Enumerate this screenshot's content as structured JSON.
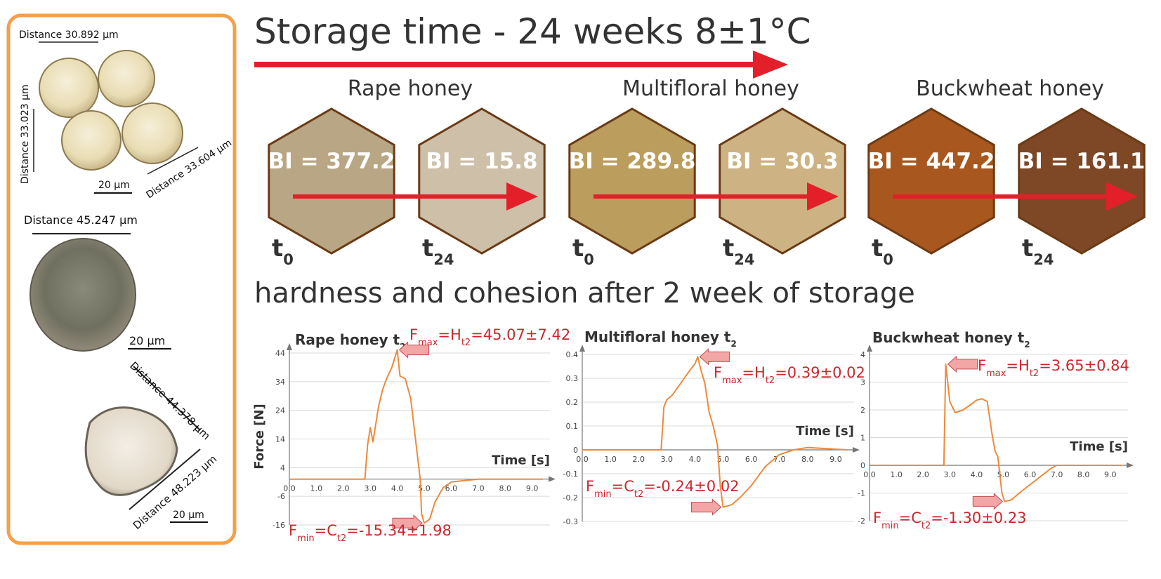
{
  "colors": {
    "frame": "#F2A04A",
    "arrow_red": "#E3202A",
    "curve": "#EE8A3A",
    "annot_red": "#C8282E",
    "callout_fill": "#F2A6A6",
    "grid": "#D9D9D9",
    "text_dark": "#333333"
  },
  "header": {
    "title": "Storage time - 24 weeks 8±1°C"
  },
  "pollen": {
    "rape": {
      "d1": "Distance 30.892 µm",
      "d2": "Distance 33.023 µm",
      "d3": "Distance 33.604 µm",
      "scale": "20 µm"
    },
    "multifloral": {
      "d1": "Distance 45.247 µm",
      "scale": "20 µm"
    },
    "buckwheat": {
      "d1": "Distance 44.378 µm",
      "d2": "Distance 48.223 µm",
      "scale": "20 µm"
    }
  },
  "honeys": [
    {
      "label": "Rape honey",
      "t0_bi": "BI = 377.2",
      "t24_bi": "BI = 15.8",
      "t0_color": "#B9A684",
      "t24_color": "#CDBFA8"
    },
    {
      "label": "Multifloral honey",
      "t0_color": "#BB9D5E",
      "t24_color": "#CDB383",
      "t0_bi": "BI = 289.8",
      "t24_bi": "BI = 30.3"
    },
    {
      "label": "Buckwheat honey",
      "t0_color": "#A8581E",
      "t24_color": "#7E4826",
      "t0_bi": "BI = 447.2",
      "t24_bi": "BI = 161.1"
    }
  ],
  "time_labels": {
    "t0": "t",
    "t0_sub": "0",
    "t24": "t",
    "t24_sub": "24"
  },
  "section2": {
    "title": "hardness and cohesion after 2 week of storage"
  },
  "chart_data": [
    {
      "type": "line",
      "title": "Rape honey t",
      "title_sub": "2",
      "xlabel": "Time [s]",
      "ylabel": "Force [N]",
      "xlim": [
        0,
        9.4
      ],
      "ylim": [
        -16,
        44
      ],
      "y_ticks": [
        "44",
        "34",
        "24",
        "14",
        "4",
        "-6",
        "-16"
      ],
      "x_ticks": [
        "0.0",
        "1.0",
        "2.0",
        "3.0",
        "4.0",
        "5.0",
        "6.0",
        "7.0",
        "8.0",
        "9.0"
      ],
      "x_tick_values": [
        0,
        1,
        2,
        3,
        4,
        5,
        6,
        7,
        8,
        9
      ],
      "y_tick_values": [
        44,
        34,
        24,
        14,
        4,
        -6,
        -16
      ],
      "zero_y": 0,
      "x": [
        0,
        1,
        2,
        2.8,
        2.9,
        3.0,
        3.1,
        3.2,
        3.3,
        3.45,
        3.6,
        3.8,
        4.0,
        4.1,
        4.3,
        4.5,
        4.7,
        4.85,
        4.9,
        5.0,
        5.2,
        5.4,
        5.7,
        6.0,
        7,
        8,
        9.4
      ],
      "y": [
        0,
        0,
        0,
        0,
        12,
        18,
        13,
        19,
        25,
        31,
        35,
        39,
        45.07,
        36,
        35,
        28,
        12,
        0,
        -12,
        -15.34,
        -14,
        -8,
        -3,
        -1,
        0,
        0,
        0
      ],
      "annotations": {
        "max": {
          "prefix": "F",
          "sub1": "max",
          "mid": "=H",
          "sub2": "t2",
          "value": "=45.07±7.42"
        },
        "min": {
          "prefix": "F",
          "sub1": "min",
          "mid": "=C",
          "sub2": "t2",
          "value": "=-15.34±1.98"
        }
      }
    },
    {
      "type": "line",
      "title": "Multifloral honey t",
      "title_sub": "2",
      "xlabel": "Time [s]",
      "ylabel": "",
      "xlim": [
        0,
        9.4
      ],
      "ylim": [
        -0.3,
        0.4
      ],
      "y_ticks": [
        "0.4",
        "0.3",
        "0.2",
        "0.1",
        "0",
        "-0.1",
        "-0.2",
        "-0.3"
      ],
      "y_tick_values": [
        0.4,
        0.3,
        0.2,
        0.1,
        0,
        -0.1,
        -0.2,
        -0.3
      ],
      "x_ticks": [
        "0.0",
        "1.0",
        "2.0",
        "3.0",
        "4.0",
        "5.0",
        "6.0",
        "7.0",
        "8.0",
        "9.0"
      ],
      "x_tick_values": [
        0,
        1,
        2,
        3,
        4,
        5,
        6,
        7,
        8,
        9
      ],
      "zero_y": 0,
      "x": [
        0,
        1,
        2,
        2.8,
        2.9,
        3.0,
        3.2,
        3.5,
        3.8,
        4.0,
        4.1,
        4.2,
        4.35,
        4.5,
        4.65,
        4.8,
        4.9,
        5.0,
        5.3,
        5.6,
        6.0,
        6.5,
        7.0,
        7.5,
        8.0,
        9.4
      ],
      "y": [
        0,
        0,
        0,
        0,
        0.18,
        0.21,
        0.23,
        0.28,
        0.33,
        0.36,
        0.39,
        0.34,
        0.28,
        0.16,
        0.1,
        0.02,
        -0.15,
        -0.24,
        -0.23,
        -0.2,
        -0.15,
        -0.07,
        -0.02,
        0,
        0.01,
        0
      ],
      "annotations": {
        "max": {
          "prefix": "F",
          "sub1": "max",
          "mid": "=H",
          "sub2": "t2",
          "value": "=0.39±0.02"
        },
        "min": {
          "prefix": "F",
          "sub1": "min",
          "mid": "=C",
          "sub2": "t2",
          "value": "=-0.24±0.02"
        }
      }
    },
    {
      "type": "line",
      "title": "Buckwheat honey t",
      "title_sub": "2",
      "xlabel": "Time [s]",
      "ylabel": "",
      "xlim": [
        0,
        9.4
      ],
      "ylim": [
        -2,
        4
      ],
      "y_ticks": [
        "4",
        "3",
        "2",
        "1",
        "0",
        "-1",
        "-2"
      ],
      "y_tick_values": [
        4,
        3,
        2,
        1,
        0,
        -1,
        -2
      ],
      "x_ticks": [
        "0.0",
        "1.0",
        "2.0",
        "3.0",
        "4.0",
        "5.0",
        "6.0",
        "7.0",
        "8.0",
        "9.0"
      ],
      "x_tick_values": [
        0,
        1,
        2,
        3,
        4,
        5,
        6,
        7,
        8,
        9
      ],
      "zero_y": 0,
      "x": [
        0,
        1,
        2,
        2.78,
        2.85,
        3.0,
        3.2,
        3.5,
        3.8,
        4.0,
        4.2,
        4.4,
        4.6,
        4.7,
        4.8,
        4.95,
        5.05,
        5.3,
        5.6,
        6.0,
        6.4,
        6.8,
        7.0,
        7.5,
        8,
        9.4
      ],
      "y": [
        0,
        0,
        0,
        0,
        3.65,
        2.3,
        1.9,
        2.0,
        2.2,
        2.35,
        2.4,
        2.3,
        1.0,
        0.5,
        0.3,
        -1.0,
        -1.3,
        -1.25,
        -1.0,
        -0.7,
        -0.4,
        -0.1,
        0,
        0,
        0,
        0
      ],
      "annotations": {
        "max": {
          "prefix": "F",
          "sub1": "max",
          "mid": "=H",
          "sub2": "t2",
          "value": "=3.65±0.84"
        },
        "min": {
          "prefix": "F",
          "sub1": "min",
          "mid": "=C",
          "sub2": "t2",
          "value": "=-1.30±0.23"
        }
      }
    }
  ]
}
